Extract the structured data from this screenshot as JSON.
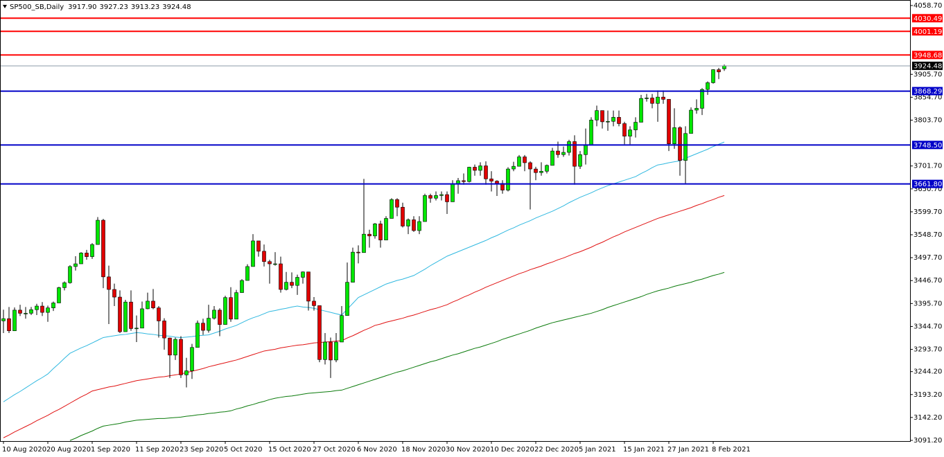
{
  "chart_data": {
    "type": "candlestick",
    "title": "SP500_SB,Daily",
    "header_values": [
      "3917.90",
      "3927.23",
      "3913.23",
      "3924.48"
    ],
    "categories": [
      "10 Aug 2020",
      null,
      null,
      null,
      null,
      null,
      null,
      null,
      "20 Aug 2020",
      null,
      null,
      null,
      null,
      null,
      null,
      null,
      "1 Sep 2020",
      null,
      null,
      null,
      null,
      null,
      null,
      null,
      "11 Sep 2020",
      null,
      null,
      null,
      null,
      null,
      null,
      null,
      "23 Sep 2020",
      null,
      null,
      null,
      null,
      null,
      null,
      null,
      "5 Oct 2020",
      null,
      null,
      null,
      null,
      null,
      null,
      null,
      "15 Oct 2020",
      null,
      null,
      null,
      null,
      null,
      null,
      null,
      "27 Oct 2020",
      null,
      null,
      null,
      null,
      null,
      null,
      null,
      "6 Nov 2020",
      null,
      null,
      null,
      null,
      null,
      null,
      null,
      "18 Nov 2020",
      null,
      null,
      null,
      null,
      null,
      null,
      null,
      "30 Nov 2020",
      null,
      null,
      null,
      null,
      null,
      null,
      null,
      "10 Dec 2020",
      null,
      null,
      null,
      null,
      null,
      null,
      null,
      "22 Dec 2020",
      null,
      null,
      null,
      null,
      null,
      null,
      null,
      "5 Jan 2021",
      null,
      null,
      null,
      null,
      null,
      null,
      null,
      "15 Jan 2021",
      null,
      null,
      null,
      null,
      null,
      null,
      null,
      "27 Jan 2021",
      null,
      null,
      null,
      null,
      null,
      null,
      null,
      "8 Feb 2021",
      null,
      null
    ],
    "open": [
      3357,
      3362,
      3335,
      3381,
      3374,
      3374,
      3382,
      3390,
      3376,
      3386,
      3397,
      3431,
      3442,
      3478,
      3484,
      3508,
      3500,
      3527,
      3581,
      3455,
      3427,
      3410,
      3333,
      3399,
      3340,
      3341,
      3384,
      3401,
      3386,
      3357,
      3319,
      3281,
      3316,
      3237,
      3246,
      3298,
      3352,
      3336,
      3363,
      3381,
      3349,
      3409,
      3361,
      3420,
      3447,
      3478,
      3535,
      3512,
      3489,
      3484,
      3484,
      3427,
      3443,
      3436,
      3454,
      3466,
      3401,
      3391,
      3271,
      3310,
      3270,
      3310,
      3369,
      3443,
      3510,
      3509,
      3550,
      3546,
      3573,
      3537,
      3585,
      3627,
      3610,
      3568,
      3582,
      3558,
      3578,
      3636,
      3630,
      3636,
      3638,
      3622,
      3662,
      3669,
      3667,
      3699,
      3692,
      3702,
      3673,
      3668,
      3663,
      3648,
      3695,
      3701,
      3722,
      3709,
      3695,
      3687,
      3690,
      3703,
      3735,
      3727,
      3732,
      3756,
      3701,
      3727,
      3748,
      3804,
      3825,
      3800,
      3801,
      3810,
      3796,
      3768,
      3782,
      3799,
      3852,
      3853,
      3841,
      3855,
      3850,
      3751,
      3787,
      3714,
      3774,
      3826,
      3830,
      3872,
      3887,
      3916,
      3917.9
    ],
    "high": [
      3382,
      3388,
      3387,
      3393,
      3388,
      3388,
      3395,
      3399,
      3391,
      3400,
      3433,
      3445,
      3481,
      3501,
      3510,
      3515,
      3530,
      3588,
      3584,
      3480,
      3440,
      3425,
      3404,
      3425,
      3369,
      3400,
      3420,
      3428,
      3390,
      3363,
      3320,
      3320,
      3323,
      3275,
      3306,
      3358,
      3362,
      3393,
      3390,
      3385,
      3413,
      3432,
      3426,
      3450,
      3483,
      3550,
      3535,
      3527,
      3493,
      3510,
      3500,
      3466,
      3465,
      3460,
      3467,
      3466,
      3410,
      3391,
      3330,
      3320,
      3330,
      3390,
      3487,
      3520,
      3525,
      3673,
      3560,
      3575,
      3580,
      3590,
      3630,
      3630,
      3620,
      3585,
      3590,
      3590,
      3640,
      3640,
      3645,
      3645,
      3645,
      3670,
      3675,
      3685,
      3700,
      3705,
      3710,
      3712,
      3690,
      3670,
      3670,
      3699,
      3711,
      3726,
      3726,
      3712,
      3700,
      3710,
      3705,
      3742,
      3756,
      3745,
      3760,
      3770,
      3735,
      3785,
      3810,
      3836,
      3825,
      3825,
      3825,
      3825,
      3800,
      3790,
      3810,
      3860,
      3862,
      3862,
      3870,
      3870,
      3850,
      3830,
      3790,
      3790,
      3832,
      3850,
      3875,
      3890,
      3917,
      3920,
      3927.23
    ],
    "low": [
      3330,
      3330,
      3335,
      3368,
      3362,
      3370,
      3370,
      3368,
      3355,
      3379,
      3397,
      3425,
      3440,
      3469,
      3484,
      3493,
      3495,
      3527,
      3430,
      3350,
      3390,
      3330,
      3333,
      3335,
      3310,
      3341,
      3383,
      3383,
      3320,
      3293,
      3230,
      3270,
      3230,
      3209,
      3228,
      3298,
      3326,
      3331,
      3360,
      3323,
      3349,
      3355,
      3361,
      3420,
      3447,
      3478,
      3500,
      3478,
      3440,
      3480,
      3420,
      3425,
      3430,
      3415,
      3440,
      3380,
      3380,
      3265,
      3260,
      3230,
      3265,
      3310,
      3369,
      3443,
      3485,
      3509,
      3520,
      3540,
      3520,
      3537,
      3585,
      3590,
      3565,
      3550,
      3555,
      3550,
      3578,
      3620,
      3625,
      3625,
      3595,
      3622,
      3640,
      3660,
      3665,
      3680,
      3680,
      3660,
      3645,
      3635,
      3640,
      3645,
      3690,
      3701,
      3690,
      3605,
      3670,
      3680,
      3685,
      3703,
      3720,
      3722,
      3725,
      3660,
      3695,
      3705,
      3748,
      3790,
      3785,
      3780,
      3790,
      3790,
      3750,
      3750,
      3765,
      3799,
      3845,
      3830,
      3800,
      3840,
      3735,
      3740,
      3680,
      3663,
      3774,
      3818,
      3815,
      3860,
      3885,
      3895,
      3913.23
    ],
    "close": [
      3362,
      3335,
      3381,
      3374,
      3374,
      3382,
      3390,
      3376,
      3386,
      3397,
      3431,
      3442,
      3478,
      3484,
      3508,
      3500,
      3527,
      3581,
      3455,
      3427,
      3410,
      3333,
      3399,
      3340,
      3341,
      3384,
      3401,
      3386,
      3357,
      3319,
      3281,
      3316,
      3237,
      3246,
      3298,
      3352,
      3336,
      3363,
      3381,
      3349,
      3409,
      3361,
      3420,
      3447,
      3478,
      3535,
      3512,
      3489,
      3484,
      3484,
      3427,
      3443,
      3436,
      3454,
      3466,
      3401,
      3391,
      3271,
      3310,
      3270,
      3310,
      3369,
      3443,
      3510,
      3509,
      3550,
      3546,
      3573,
      3537,
      3585,
      3627,
      3610,
      3568,
      3582,
      3558,
      3578,
      3636,
      3630,
      3636,
      3638,
      3622,
      3662,
      3669,
      3667,
      3699,
      3692,
      3702,
      3673,
      3668,
      3663,
      3648,
      3695,
      3701,
      3722,
      3709,
      3695,
      3687,
      3690,
      3703,
      3735,
      3727,
      3732,
      3756,
      3701,
      3727,
      3748,
      3804,
      3825,
      3800,
      3801,
      3810,
      3796,
      3768,
      3782,
      3799,
      3852,
      3853,
      3841,
      3855,
      3850,
      3751,
      3787,
      3714,
      3774,
      3826,
      3830,
      3872,
      3887,
      3916,
      3911,
      3924.48
    ],
    "up_color": "#00e600",
    "down_color": "#e00000",
    "wick_color": "#000000",
    "overlays": [
      {
        "color": "#2fb8e0",
        "values": [
          3177,
          3185,
          3193,
          3200,
          3208,
          3216,
          3224,
          3231,
          3239,
          3251,
          3262,
          3274,
          3285,
          3291,
          3297,
          3302,
          3308,
          3314,
          3320,
          3322,
          3324,
          3326,
          3327,
          3329,
          3331,
          3330,
          3328,
          3327,
          3325,
          3324,
          3323,
          3321,
          3320,
          3321,
          3322,
          3324,
          3325,
          3326,
          3330,
          3334,
          3339,
          3343,
          3347,
          3353,
          3359,
          3364,
          3368,
          3373,
          3378,
          3380,
          3383,
          3385,
          3388,
          3390,
          3388,
          3387,
          3385,
          3382,
          3379,
          3376,
          3373,
          3370,
          3383,
          3396,
          3409,
          3415,
          3421,
          3427,
          3433,
          3439,
          3443,
          3447,
          3450,
          3454,
          3458,
          3465,
          3472,
          3480,
          3487,
          3494,
          3501,
          3506,
          3511,
          3516,
          3521,
          3526,
          3531,
          3536,
          3542,
          3547,
          3553,
          3559,
          3564,
          3570,
          3575,
          3580,
          3586,
          3591,
          3596,
          3601,
          3607,
          3613,
          3620,
          3626,
          3632,
          3637,
          3642,
          3648,
          3653,
          3658,
          3662,
          3666,
          3670,
          3674,
          3678,
          3685,
          3691,
          3698,
          3704,
          3706,
          3709,
          3711,
          3713,
          3719,
          3724,
          3729,
          3734,
          3739,
          3745,
          3750,
          3755
        ]
      },
      {
        "color": "#e01010",
        "values": [
          3097,
          3103,
          3110,
          3116,
          3122,
          3128,
          3135,
          3141,
          3147,
          3154,
          3160,
          3167,
          3174,
          3181,
          3188,
          3194,
          3201,
          3204,
          3207,
          3210,
          3212,
          3215,
          3218,
          3221,
          3224,
          3226,
          3228,
          3230,
          3232,
          3233,
          3235,
          3237,
          3239,
          3242,
          3245,
          3248,
          3251,
          3255,
          3258,
          3261,
          3264,
          3267,
          3270,
          3274,
          3278,
          3282,
          3286,
          3290,
          3292,
          3294,
          3297,
          3299,
          3301,
          3303,
          3304,
          3306,
          3308,
          3309,
          3310,
          3311,
          3312,
          3313,
          3319,
          3324,
          3330,
          3336,
          3341,
          3347,
          3350,
          3354,
          3357,
          3360,
          3363,
          3367,
          3370,
          3374,
          3378,
          3382,
          3385,
          3389,
          3393,
          3399,
          3404,
          3410,
          3415,
          3421,
          3426,
          3432,
          3437,
          3442,
          3447,
          3452,
          3457,
          3462,
          3466,
          3471,
          3475,
          3479,
          3484,
          3488,
          3493,
          3497,
          3502,
          3507,
          3511,
          3516,
          3521,
          3527,
          3532,
          3538,
          3544,
          3549,
          3555,
          3560,
          3565,
          3570,
          3575,
          3580,
          3585,
          3589,
          3593,
          3597,
          3601,
          3605,
          3609,
          3614,
          3618,
          3623,
          3627,
          3632,
          3636
        ]
      },
      {
        "color": "#0a7a0a",
        "values": [
          null,
          null,
          null,
          null,
          null,
          null,
          null,
          null,
          null,
          null,
          null,
          null,
          3091,
          3096,
          3102,
          3107,
          3112,
          3118,
          3123,
          3125,
          3127,
          3129,
          3132,
          3134,
          3136,
          3137,
          3138,
          3139,
          3140,
          3140,
          3141,
          3142,
          3143,
          3145,
          3146,
          3148,
          3149,
          3151,
          3152,
          3154,
          3155,
          3157,
          3161,
          3164,
          3168,
          3171,
          3175,
          3178,
          3182,
          3185,
          3187,
          3189,
          3190,
          3192,
          3194,
          3196,
          3197,
          3198,
          3199,
          3200,
          3202,
          3203,
          3207,
          3211,
          3215,
          3219,
          3223,
          3227,
          3231,
          3235,
          3239,
          3243,
          3246,
          3250,
          3254,
          3258,
          3262,
          3266,
          3269,
          3273,
          3277,
          3281,
          3284,
          3288,
          3292,
          3296,
          3299,
          3303,
          3307,
          3311,
          3316,
          3320,
          3324,
          3328,
          3332,
          3336,
          3341,
          3345,
          3349,
          3353,
          3356,
          3359,
          3362,
          3365,
          3368,
          3371,
          3374,
          3378,
          3382,
          3387,
          3391,
          3395,
          3399,
          3403,
          3407,
          3411,
          3416,
          3420,
          3424,
          3427,
          3430,
          3434,
          3437,
          3440,
          3443,
          3447,
          3450,
          3454,
          3458,
          3461,
          3465
        ]
      }
    ],
    "levels": [
      {
        "value": 4030.49,
        "color": "#ff0000"
      },
      {
        "value": 4001.19,
        "color": "#ff0000"
      },
      {
        "value": 3948.68,
        "color": "#ff0000"
      },
      {
        "value": 3868.29,
        "color": "#0000c8"
      },
      {
        "value": 3748.5,
        "label": "3748.50",
        "color": "#0000c8"
      },
      {
        "value": 3661.8,
        "label": "3661.80",
        "color": "#0000c8"
      }
    ],
    "price_line_color": "#8c9aa6",
    "ylim": [
      3091.2,
      4067.9
    ],
    "yticks": [
      {
        "value": 4058.7,
        "label": "4058.70"
      },
      {
        "value": 3905.7,
        "label": "3905.70"
      },
      {
        "value": 3854.7,
        "label": "3854.70"
      },
      {
        "value": 3803.7,
        "label": "3803.70"
      },
      {
        "value": 3701.7,
        "label": "3701.70"
      },
      {
        "value": 3650.7,
        "label": "3650.70"
      },
      {
        "value": 3599.7,
        "label": "3599.70"
      },
      {
        "value": 3548.7,
        "label": "3548.70"
      },
      {
        "value": 3497.7,
        "label": "3497.70"
      },
      {
        "value": 3446.7,
        "label": "3446.70"
      },
      {
        "value": 3395.7,
        "label": "3395.70"
      },
      {
        "value": 3344.7,
        "label": "3344.70"
      },
      {
        "value": 3293.7,
        "label": "3293.70"
      },
      {
        "value": 3244.2,
        "label": "3244.20"
      },
      {
        "value": 3193.2,
        "label": "3193.20"
      },
      {
        "value": 3142.2,
        "label": "3142.20"
      },
      {
        "value": 3091.2,
        "label": "3091.20"
      }
    ],
    "grid": false
  }
}
